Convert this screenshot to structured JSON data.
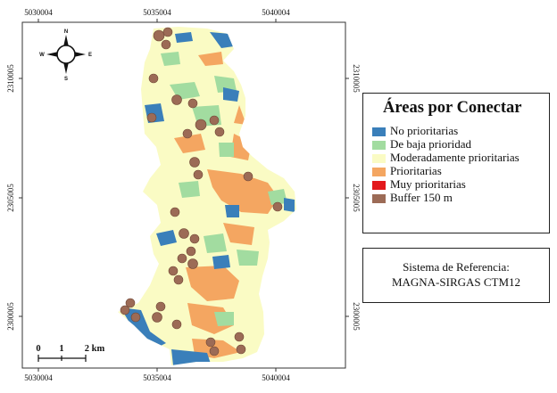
{
  "map": {
    "top_ticks": [
      "5030004",
      "5035004",
      "5040004"
    ],
    "bottom_ticks": [
      "5030004",
      "5035004",
      "5040004"
    ],
    "left_ticks": [
      "2310005",
      "2305005",
      "2300005"
    ],
    "right_ticks": [
      "2310005",
      "2305005",
      "2300005"
    ]
  },
  "compass": {
    "n": "N",
    "s": "S",
    "e": "E",
    "w": "W"
  },
  "scale": {
    "labels": [
      "0",
      "1",
      "2 km"
    ]
  },
  "legend": {
    "title": "Áreas por Conectar",
    "items": [
      {
        "label": "No prioritarias",
        "color": "#3a7fba"
      },
      {
        "label": "De baja prioridad",
        "color": "#a2dca0"
      },
      {
        "label": "Moderadamente prioritarias",
        "color": "#fafbc4"
      },
      {
        "label": "Prioritarias",
        "color": "#f4a661"
      },
      {
        "label": "Muy prioritarias",
        "color": "#e3181c"
      },
      {
        "label": "Buffer 150 m",
        "color": "#9c6b56"
      }
    ]
  },
  "reference": {
    "line1": "Sistema de Referencia:",
    "line2": "MAGNA-SIRGAS CTM12"
  },
  "colors": {
    "frame": "#333333",
    "no_prioritarias": "#3a7fba",
    "baja": "#a2dca0",
    "moderada": "#fafbc4",
    "prioritarias": "#f4a661",
    "buffer": "#9c6b56"
  }
}
